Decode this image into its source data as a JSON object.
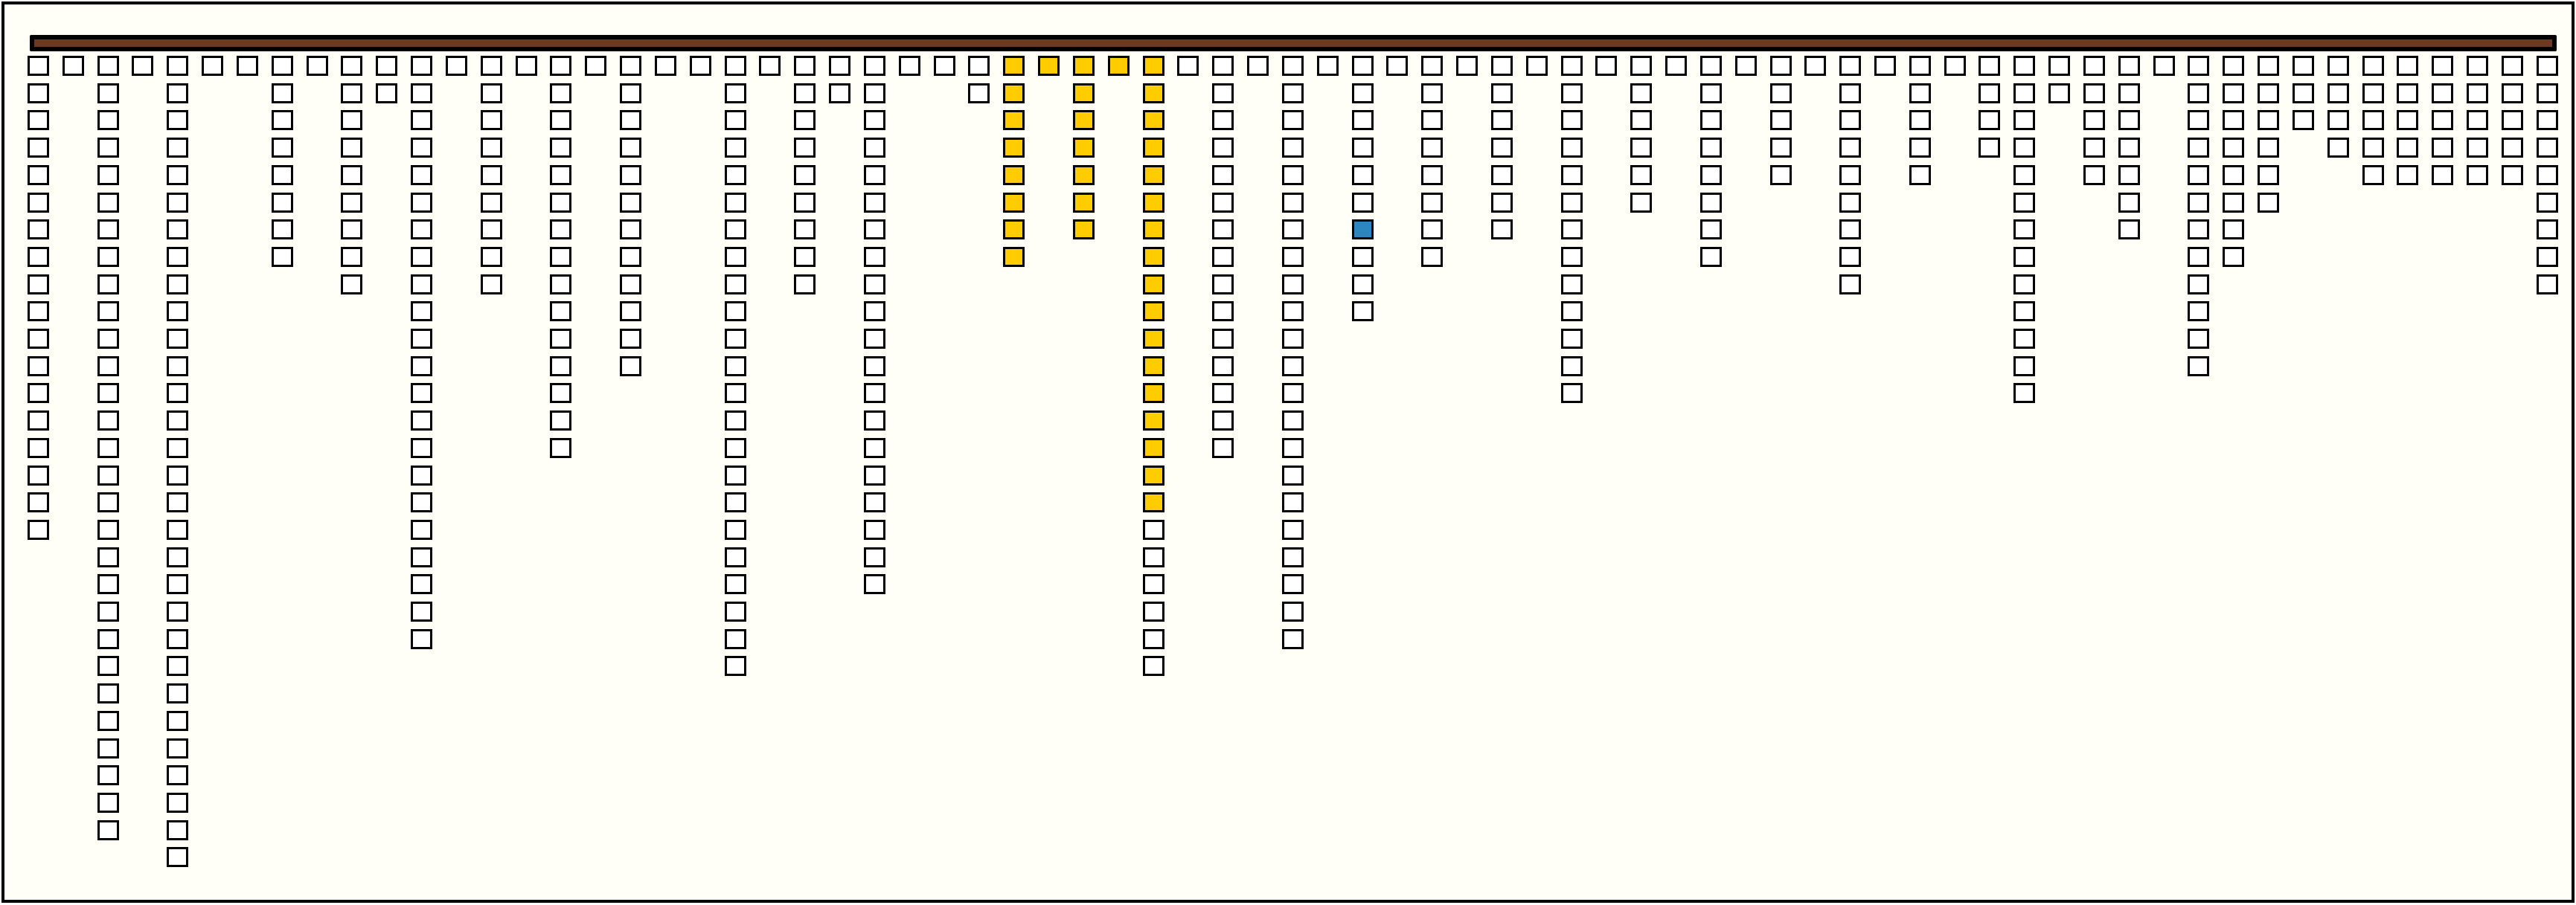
{
  "colors": {
    "background": "#fffff7",
    "bar": "#6b3a21",
    "cell_empty": "#ffffff",
    "cell_highlight": "#ffcc00",
    "cell_selected": "#2e86c1",
    "border": "#000000"
  },
  "columns": [
    {
      "count": 18
    },
    {
      "count": 1
    },
    {
      "count": 29
    },
    {
      "count": 1
    },
    {
      "count": 30
    },
    {
      "count": 1
    },
    {
      "count": 1
    },
    {
      "count": 8
    },
    {
      "count": 1
    },
    {
      "count": 9
    },
    {
      "count": 2
    },
    {
      "count": 22
    },
    {
      "count": 1
    },
    {
      "count": 9
    },
    {
      "count": 1
    },
    {
      "count": 15
    },
    {
      "count": 1
    },
    {
      "count": 12
    },
    {
      "count": 1
    },
    {
      "count": 1
    },
    {
      "count": 23
    },
    {
      "count": 1
    },
    {
      "count": 9
    },
    {
      "count": 2
    },
    {
      "count": 20
    },
    {
      "count": 1
    },
    {
      "count": 1
    },
    {
      "count": 2
    },
    {
      "count": 8,
      "highlight": 8
    },
    {
      "count": 1,
      "highlight": 1
    },
    {
      "count": 7,
      "highlight": 7
    },
    {
      "count": 1,
      "highlight": 1
    },
    {
      "count": 23,
      "highlight": 17
    },
    {
      "count": 1
    },
    {
      "count": 15
    },
    {
      "count": 1
    },
    {
      "count": 22
    },
    {
      "count": 1
    },
    {
      "count": 10,
      "selected_row": 7
    },
    {
      "count": 1
    },
    {
      "count": 8
    },
    {
      "count": 1
    },
    {
      "count": 7
    },
    {
      "count": 1
    },
    {
      "count": 13
    },
    {
      "count": 1
    },
    {
      "count": 6
    },
    {
      "count": 1
    },
    {
      "count": 8
    },
    {
      "count": 1
    },
    {
      "count": 5
    },
    {
      "count": 1
    },
    {
      "count": 9
    },
    {
      "count": 1
    },
    {
      "count": 5
    },
    {
      "count": 1
    },
    {
      "count": 4
    },
    {
      "count": 13
    },
    {
      "count": 2
    },
    {
      "count": 5
    },
    {
      "count": 7
    },
    {
      "count": 1
    },
    {
      "count": 12
    },
    {
      "count": 8
    },
    {
      "count": 6
    },
    {
      "count": 3
    },
    {
      "count": 4
    },
    {
      "count": 5
    },
    {
      "count": 5
    },
    {
      "count": 5
    },
    {
      "count": 5
    },
    {
      "count": 5
    },
    {
      "count": 9
    }
  ]
}
